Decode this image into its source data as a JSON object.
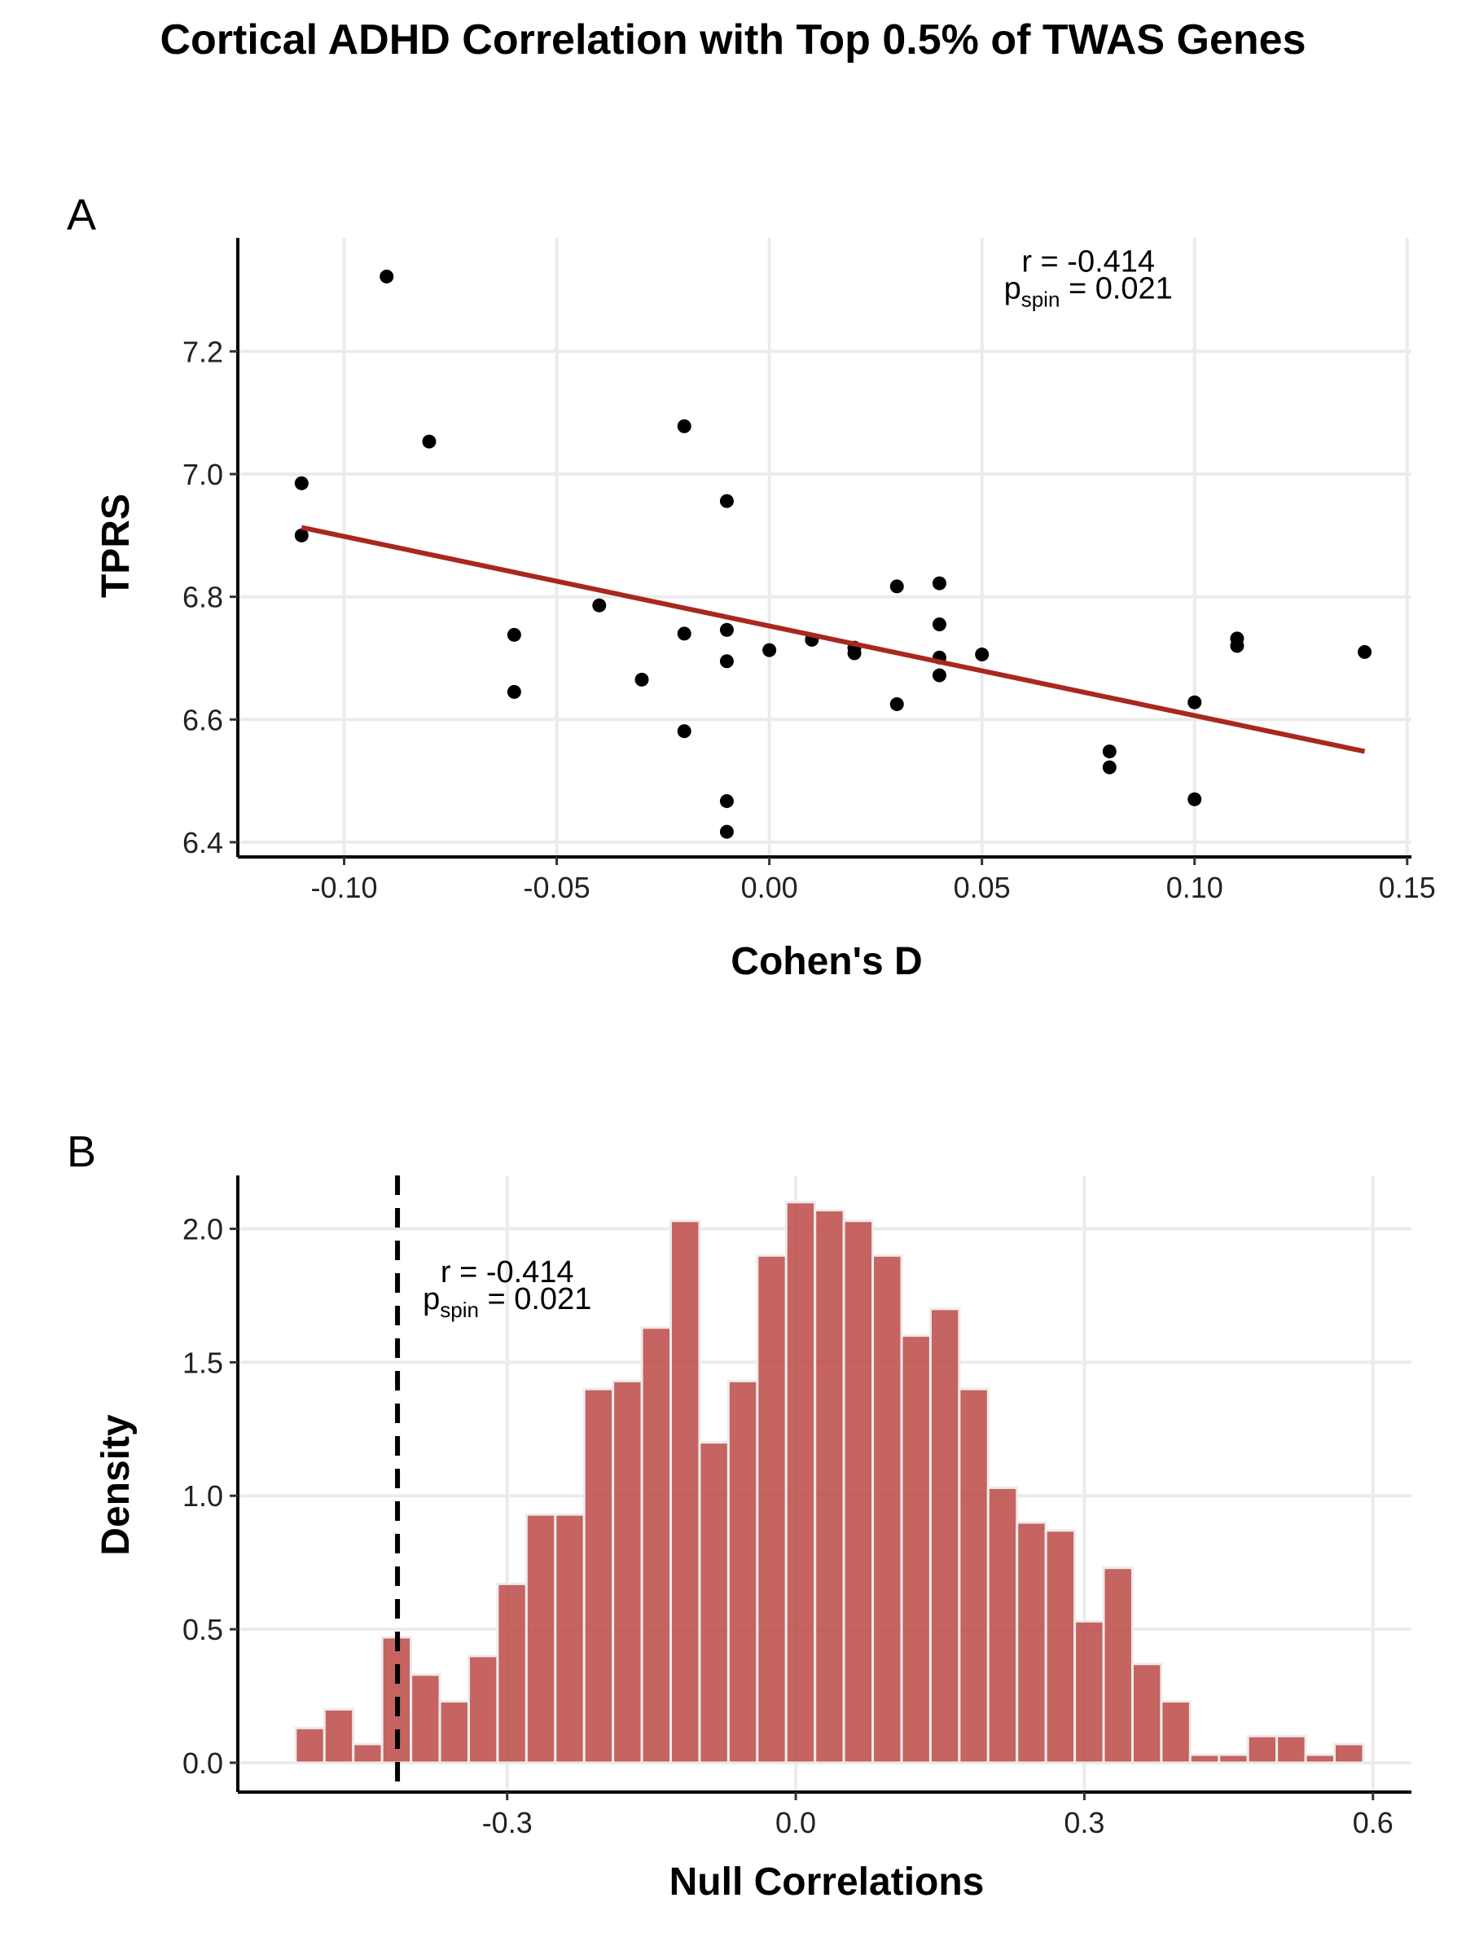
{
  "figure": {
    "title": "Cortical ADHD Correlation with Top 0.5% of TWAS Genes"
  },
  "chart_data": [
    {
      "panel": "A",
      "type": "scatter",
      "xlabel": "Cohen's D",
      "ylabel": "TPRS",
      "xlim": [
        -0.125,
        0.151
      ],
      "ylim": [
        6.376,
        7.385
      ],
      "xticks": [
        -0.1,
        -0.05,
        0.0,
        0.05,
        0.1,
        0.15
      ],
      "xtick_labels": [
        "-0.10",
        "-0.05",
        "0.00",
        "0.05",
        "0.10",
        "0.15"
      ],
      "yticks": [
        6.4,
        6.6,
        6.8,
        7.0,
        7.2
      ],
      "ytick_labels": [
        "6.4",
        "6.6",
        "6.8",
        "7.0",
        "7.2"
      ],
      "grid": true,
      "points": [
        {
          "x": -0.11,
          "y": 6.985
        },
        {
          "x": -0.11,
          "y": 6.9
        },
        {
          "x": -0.09,
          "y": 7.322
        },
        {
          "x": -0.08,
          "y": 7.053
        },
        {
          "x": -0.06,
          "y": 6.738
        },
        {
          "x": -0.06,
          "y": 6.645
        },
        {
          "x": -0.04,
          "y": 6.786
        },
        {
          "x": -0.03,
          "y": 6.665
        },
        {
          "x": -0.02,
          "y": 7.078
        },
        {
          "x": -0.02,
          "y": 6.74
        },
        {
          "x": -0.02,
          "y": 6.581
        },
        {
          "x": -0.01,
          "y": 6.956
        },
        {
          "x": -0.01,
          "y": 6.746
        },
        {
          "x": -0.01,
          "y": 6.695
        },
        {
          "x": -0.01,
          "y": 6.467
        },
        {
          "x": -0.01,
          "y": 6.417
        },
        {
          "x": 0.0,
          "y": 6.713
        },
        {
          "x": 0.01,
          "y": 6.73
        },
        {
          "x": 0.02,
          "y": 6.717
        },
        {
          "x": 0.02,
          "y": 6.708
        },
        {
          "x": 0.03,
          "y": 6.817
        },
        {
          "x": 0.03,
          "y": 6.625
        },
        {
          "x": 0.04,
          "y": 6.822
        },
        {
          "x": 0.04,
          "y": 6.755
        },
        {
          "x": 0.04,
          "y": 6.701
        },
        {
          "x": 0.04,
          "y": 6.672
        },
        {
          "x": 0.05,
          "y": 6.706
        },
        {
          "x": 0.08,
          "y": 6.548
        },
        {
          "x": 0.08,
          "y": 6.522
        },
        {
          "x": 0.1,
          "y": 6.628
        },
        {
          "x": 0.1,
          "y": 6.47
        },
        {
          "x": 0.11,
          "y": 6.732
        },
        {
          "x": 0.11,
          "y": 6.72
        },
        {
          "x": 0.14,
          "y": 6.71
        }
      ],
      "fit_line": {
        "x": [
          -0.11,
          0.14
        ],
        "y": [
          6.913,
          6.548
        ],
        "color": "#a8281f"
      },
      "annotation": {
        "r_text": "r = -0.414",
        "p_main": "p",
        "p_sub": "spin",
        "p_rest": " = 0.021",
        "x": 0.075,
        "y": 7.33
      }
    },
    {
      "panel": "B",
      "type": "bar",
      "subtype": "histogram",
      "xlabel": "Null Correlations",
      "ylabel": "Density",
      "xlim": [
        -0.58,
        0.64
      ],
      "ylim": [
        -0.11,
        2.2
      ],
      "xticks": [
        -0.3,
        0.0,
        0.3,
        0.6
      ],
      "xtick_labels": [
        "-0.3",
        "0.0",
        "0.3",
        "0.6"
      ],
      "yticks": [
        0.0,
        0.5,
        1.0,
        1.5,
        2.0
      ],
      "ytick_labels": [
        "0.0",
        "0.5",
        "1.0",
        "1.5",
        "2.0"
      ],
      "grid": true,
      "bin_start": -0.52,
      "bin_width": 0.03,
      "bar_color": "#b8423d",
      "values": [
        0.13,
        0.2,
        0.07,
        0.47,
        0.33,
        0.23,
        0.4,
        0.67,
        0.93,
        0.93,
        1.4,
        1.43,
        1.63,
        2.03,
        1.2,
        1.43,
        1.9,
        2.1,
        2.07,
        2.03,
        1.9,
        1.6,
        1.7,
        1.4,
        1.03,
        0.9,
        0.87,
        0.53,
        0.73,
        0.37,
        0.23,
        0.03,
        0.03,
        0.1,
        0.1,
        0.03,
        0.07
      ],
      "observed_line": {
        "x": -0.414,
        "style": "dashed"
      },
      "annotation": {
        "r_text": "r = -0.414",
        "p_main": "p",
        "p_sub": "spin",
        "p_rest": " = 0.021",
        "x": -0.3,
        "y": 1.8
      }
    }
  ]
}
